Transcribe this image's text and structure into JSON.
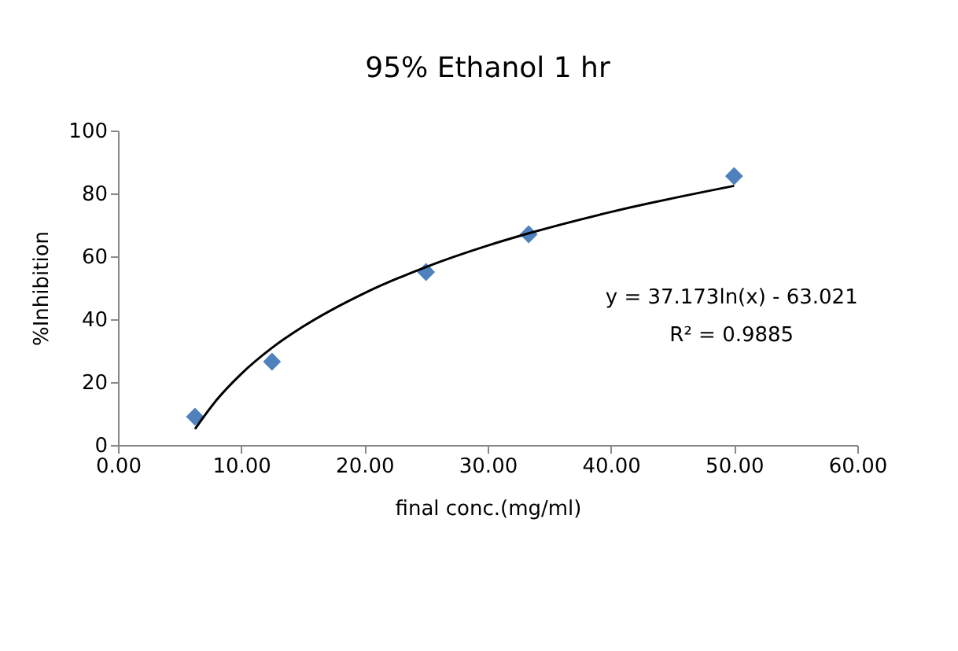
{
  "chart_data": {
    "type": "scatter",
    "title": "95% Ethanol 1 hr",
    "xlabel": "final conc.(mg/ml)",
    "ylabel": "%Inhibition",
    "series": [
      {
        "color": "#4f81bd",
        "marker": "diamond",
        "x": [
          6.25,
          12.5,
          25,
          33.33,
          50
        ],
        "values": [
          9,
          26.5,
          55,
          67,
          85.5
        ]
      },
      {
        "type": "line",
        "color": "#000000",
        "line_style": "solid",
        "x": [
          6.25,
          8,
          10,
          12.5,
          15,
          20,
          25,
          30,
          33.33,
          40,
          50
        ],
        "values": [
          5.1,
          14.3,
          22.6,
          30.9,
          37.6,
          48.3,
          56.6,
          63.4,
          67.3,
          74.1,
          82.4
        ]
      }
    ],
    "annotations": [
      "y = 37.173ln(x) - 63.021",
      "R² = 0.9885"
    ],
    "xlim": [
      0,
      60
    ],
    "ylim": [
      0,
      100
    ],
    "xticks": [
      {
        "value": 0,
        "label": "0.00"
      },
      {
        "value": 10,
        "label": "10.00"
      },
      {
        "value": 20,
        "label": "20.00"
      },
      {
        "value": 30,
        "label": "30.00"
      },
      {
        "value": 40,
        "label": "40.00"
      },
      {
        "value": 50,
        "label": "50.00"
      },
      {
        "value": 60,
        "label": "60.00"
      }
    ],
    "yticks": [
      0,
      20,
      40,
      60,
      80,
      100
    ],
    "grid": false
  }
}
